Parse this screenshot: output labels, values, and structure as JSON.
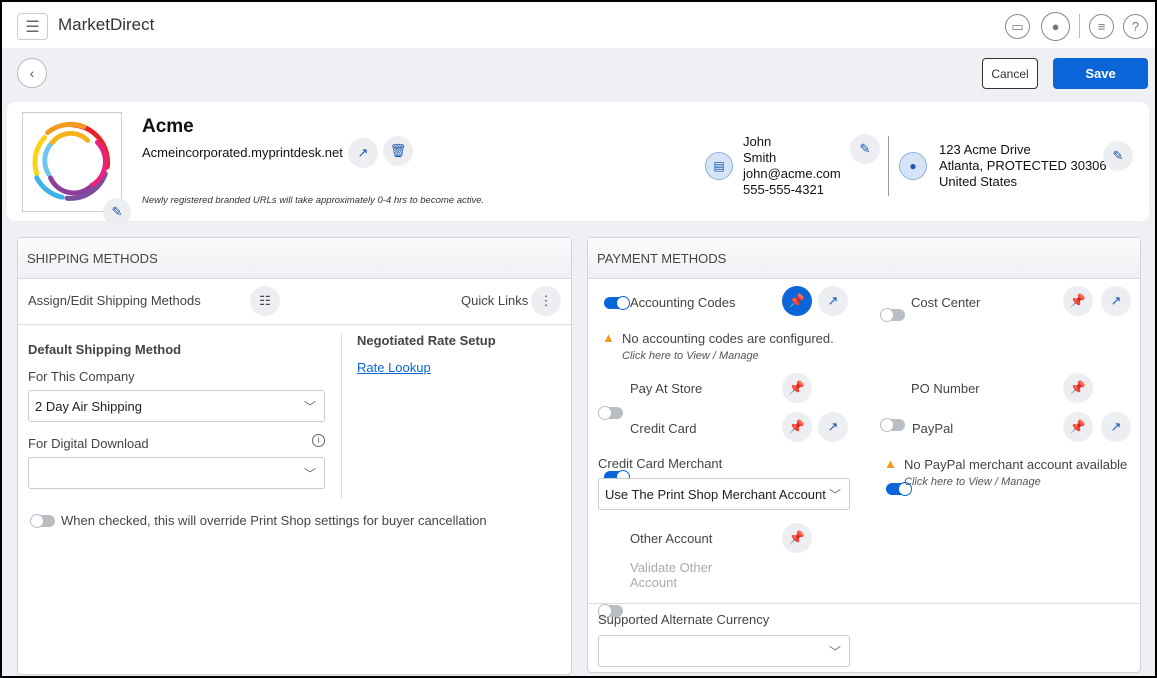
{
  "app": {
    "title": "MarketDirect"
  },
  "toolbar": {
    "cancel_label": "Cancel",
    "save_label": "Save"
  },
  "company": {
    "name": "Acme",
    "url": "Acmeincorporated.myprintdesk.net",
    "url_note": "Newly registered branded URLs will take approximately 0-4 hrs to become active.",
    "contact": {
      "first": "John",
      "last": "Smith",
      "email": "john@acme.com",
      "phone": "555-555-4321"
    },
    "address": {
      "line1": "123 Acme Drive",
      "line2": "Atlanta, PROTECTED 30306",
      "line3": "United States"
    }
  },
  "shipping": {
    "title": "SHIPPING METHODS",
    "assign_label": "Assign/Edit Shipping Methods",
    "quick_links": "Quick Links",
    "default_title": "Default Shipping Method",
    "for_company": "For This Company",
    "company_value": "2 Day Air Shipping",
    "for_digital": "For Digital Download",
    "digital_value": "",
    "negotiated_title": "Negotiated Rate Setup",
    "rate_lookup": "Rate Lookup",
    "override_label": "When checked, this will override Print Shop settings for buyer cancellation",
    "override_on": false
  },
  "payment": {
    "title": "PAYMENT METHODS",
    "accounting": {
      "label": "Accounting Codes",
      "on": true,
      "warning": "No accounting codes are configured.",
      "link": "Click here to View / Manage"
    },
    "cost_center": {
      "label": "Cost Center",
      "on": false
    },
    "pay_at_store": {
      "label": "Pay At Store",
      "on": false
    },
    "po_number": {
      "label": "PO Number",
      "on": false
    },
    "credit_card": {
      "label": "Credit Card",
      "on": true
    },
    "paypal": {
      "label": "PayPal",
      "on": true,
      "warning": "No PayPal merchant account available",
      "link": "Click here to View / Manage"
    },
    "merchant_label": "Credit Card Merchant",
    "merchant_value": "Use The Print Shop Merchant Account",
    "other_account": {
      "label": "Other Account",
      "on": false
    },
    "validate_other": {
      "label1": "Validate Other",
      "label2": "Account",
      "on": false
    },
    "currency_label": "Supported Alternate Currency",
    "currency_value": ""
  },
  "colors": {
    "accent": "#0a66d8",
    "warning": "#f59a1d"
  }
}
